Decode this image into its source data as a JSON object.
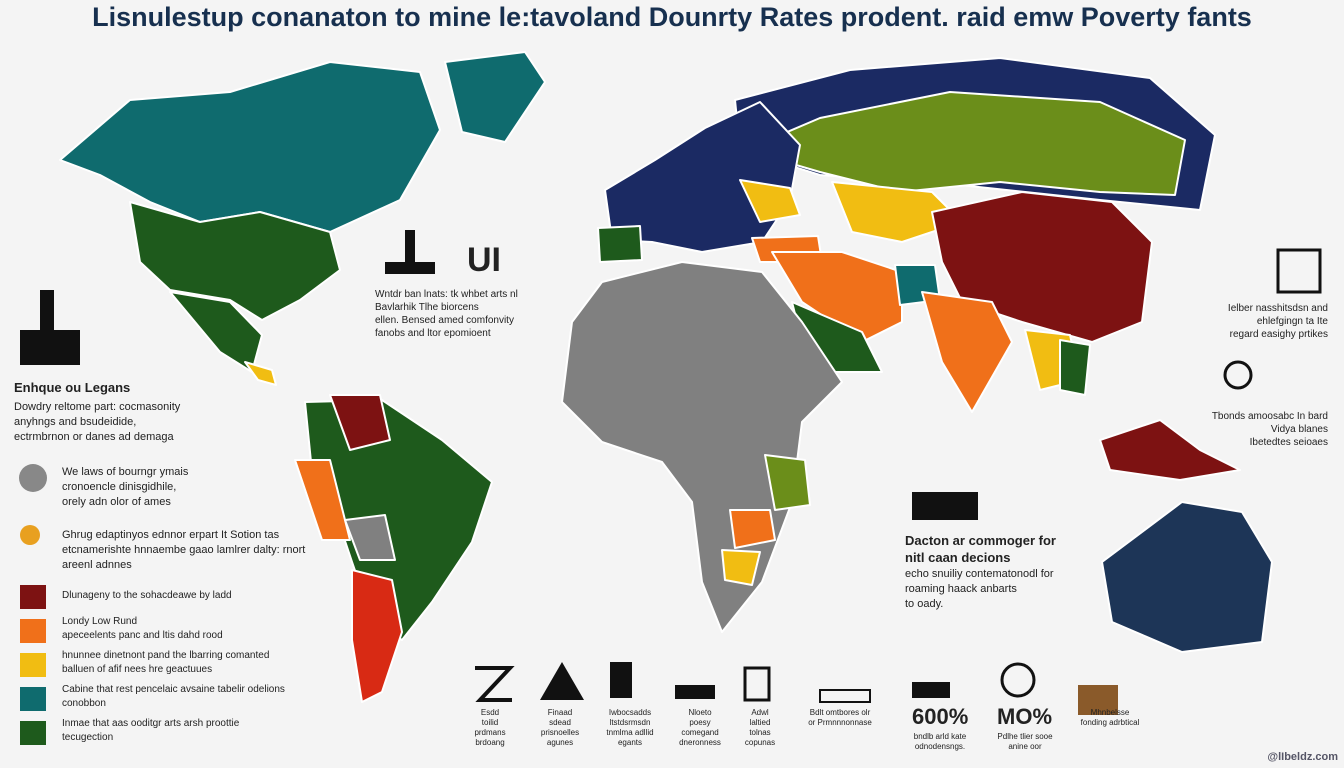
{
  "header": {
    "title": "Lisnulestup conanaton to mine le:tavoland Dounrty Rates prodent. raid emw Poverty fants"
  },
  "left_panel": {
    "heading": "Enhque ou Legans",
    "intro": [
      "Dowdry reltome part: cocmasonity",
      "anyhngs and bsudeidide,",
      "ectrmbrnon or danes ad demaga"
    ],
    "notes": [
      [
        "We laws of bourngr ymais",
        "cronoencle dinisgidhile,",
        "orely adn olor of ames"
      ],
      [
        "Ghrug edaptinyos ednnor erpart It Sotion tas",
        "etcnamerishte hnnaembe gaao lamlrer dalty: rnort",
        "areenl adnnes"
      ]
    ],
    "legend": [
      {
        "color": "#7d1212",
        "lines": [
          "Dlunageny to the sohacdeawe by ladd"
        ]
      },
      {
        "color": "#f0701a",
        "lines": [
          "Londy Low Rund",
          "apeceelents panc and ltis dahd rood"
        ]
      },
      {
        "color": "#f1bd12",
        "lines": [
          "hnunnee dinetnont pand the lbarring comanted",
          "balluen of afif nees hre geactuues"
        ]
      },
      {
        "color": "#0f6b6e",
        "lines": [
          "Cabine that rest pencelaic avsaine tabelir odelions",
          "conobbon"
        ]
      },
      {
        "color": "#1e5a1c",
        "lines": [
          "Inmae that aas ooditgr arts arsh proottie",
          "tecugection"
        ]
      }
    ]
  },
  "center_note": {
    "badge": "UI",
    "lines": [
      "Wntdr ban lnats: tk whbet arts nl",
      "Bavlarhik Tlhe biorcens",
      "ellen. Bensed amed comfonvity",
      "fanobs and ltor epomioent"
    ]
  },
  "ocean_note": {
    "heading": [
      "Dacton ar commoger for",
      "nitl caan decions"
    ],
    "lines": [
      "echo snuiliy contematonodl for",
      "roaming haack anbarts",
      "to oady."
    ]
  },
  "right_panel": {
    "top": [
      "Ielber nasshitsdsn and",
      "ehlefgingn ta Ite",
      "regard easighy prtikes"
    ],
    "bottom": [
      "Tbonds amoosabc In bard",
      "Vidya blanes",
      "Ibetedtes seioaes"
    ]
  },
  "bottom_row": [
    {
      "lines": [
        "Esdd",
        "toilid",
        "prdmans",
        "brdoang"
      ]
    },
    {
      "lines": [
        "Finaad",
        "sdead",
        "prisnoelles",
        "agunes"
      ]
    },
    {
      "lines": [
        "Iwbocsadds",
        "ltstdsrmsdn",
        "tnmlma adllid",
        "egants"
      ]
    },
    {
      "lines": [
        "Nloeto",
        "poesy",
        "comegand",
        "dneronness"
      ]
    },
    {
      "lines": [
        "Adwl",
        "laltied",
        "tolnas",
        "copunas"
      ]
    },
    {
      "lines": [
        "Bdlt omtbores olr",
        "or Prmnnnonnase"
      ]
    },
    {
      "big": "600%",
      "lines": [
        "bndlb arld kate",
        "odnodensngs."
      ]
    },
    {
      "big": "MO%",
      "lines": [
        "Pdlhe tlier sooe",
        "anine oor"
      ]
    },
    {
      "lines": [
        "Mhnbelsse",
        "fonding adrbtical"
      ]
    }
  ],
  "watermark": "@lIbeldz.com"
}
